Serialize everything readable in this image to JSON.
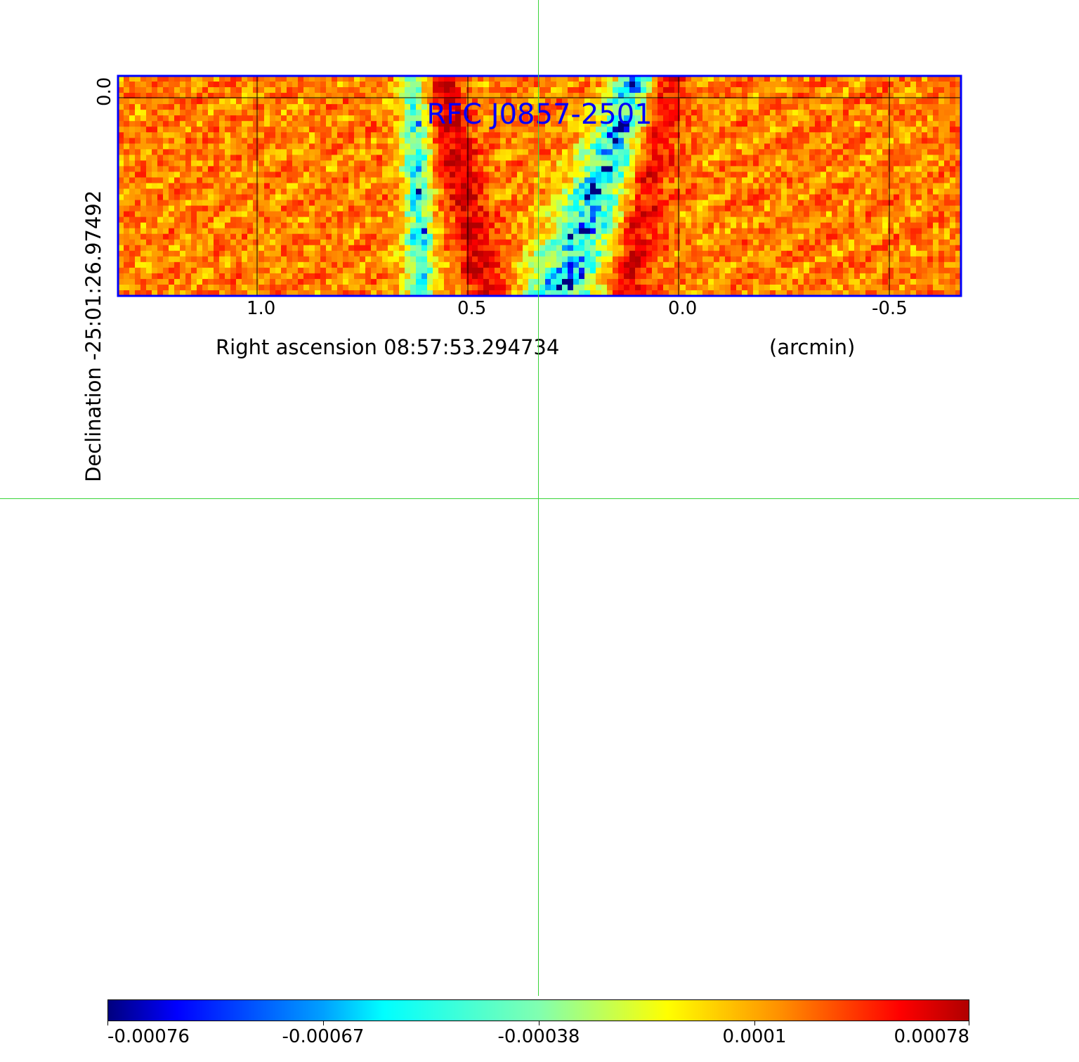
{
  "chart_data": {
    "type": "heatmap",
    "title": "RFC J0857-2501",
    "xlabel": "Right ascension  08:57:53.294734",
    "xunit": "(arcmin)",
    "ylabel": "Declination  -25:01:26.97492",
    "xlim": [
      1.33,
      -0.67
    ],
    "x_ticks": [
      "1.0",
      "0.5",
      "0.0",
      "-0.5"
    ],
    "x_tick_values": [
      1.0,
      0.5,
      0.0,
      -0.5
    ],
    "y_ticks": [
      "0.0"
    ],
    "y_tick_values": [
      0.0
    ],
    "grid": true,
    "colormap": "jet",
    "colorbar": {
      "ticks": [
        "-0.00076",
        "-0.00067",
        "-0.00038",
        "0.0001",
        "0.00078"
      ],
      "tick_values": [
        -0.00076,
        -0.00067,
        -0.00038,
        0.0001,
        0.00078
      ]
    },
    "grid_shape": [
      39,
      150
    ],
    "seed": 7
  },
  "colors": {
    "frame": "#0000ff",
    "title": "#0000ff",
    "crosshair": "#3ad43a"
  }
}
